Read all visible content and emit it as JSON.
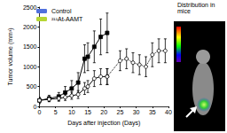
{
  "chart_data": {
    "type": "line",
    "x_label": "Days after injection (Days)",
    "y_label": "Tumor volume (mm³)",
    "xlim": [
      0,
      40
    ],
    "xticks": [
      0,
      5,
      10,
      15,
      20,
      25,
      30,
      35,
      40
    ],
    "ylim": [
      0,
      2500
    ],
    "yticks": [
      0,
      500,
      1000,
      1500,
      2000,
      2500
    ],
    "grid": false,
    "legend": "top-left",
    "series": [
      {
        "name": "Control",
        "color": "#000000",
        "marker": "square",
        "line_style": "solid",
        "x": [
          0,
          3,
          6,
          8,
          10,
          12,
          14,
          15,
          17,
          19,
          21
        ],
        "values": [
          150,
          200,
          250,
          350,
          450,
          600,
          1200,
          1250,
          1500,
          1750,
          1850
        ],
        "errors": [
          80,
          80,
          100,
          150,
          200,
          250,
          350,
          350,
          400,
          450,
          500
        ]
      },
      {
        "name": "²¹¹At-AAMT",
        "color": "#000000",
        "marker": "circle_open",
        "line_style": "solid",
        "x": [
          0,
          3,
          6,
          8,
          10,
          12,
          14,
          15,
          17,
          19,
          21
        ],
        "values": [
          150,
          180,
          200,
          230,
          270,
          300,
          450,
          500,
          700,
          750,
          750
        ],
        "errors": [
          60,
          60,
          70,
          80,
          90,
          100,
          150,
          150,
          200,
          200,
          200
        ]
      },
      {
        "name": "²¹¹At-AAMT",
        "color": "#000000",
        "marker": "circle_open",
        "line_style": "dotted",
        "x": [
          21,
          25,
          27,
          29,
          31,
          33,
          35,
          37,
          39
        ],
        "values": [
          750,
          1150,
          1200,
          1100,
          1050,
          1000,
          1300,
          1400,
          1400
        ],
        "errors": [
          200,
          250,
          250,
          250,
          250,
          250,
          300,
          300,
          300
        ]
      }
    ]
  },
  "inset": {
    "title": "Distribution in mice"
  }
}
